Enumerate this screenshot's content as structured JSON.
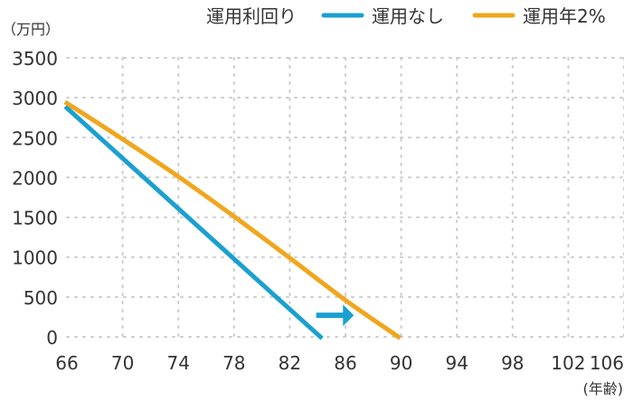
{
  "chart_data": {
    "type": "line",
    "y_unit_label": "（万円）",
    "x_unit_label": "(年齢)",
    "legend": {
      "title": "運用利回り",
      "position": "top-right"
    },
    "x_ticks": [
      "66",
      "70",
      "74",
      "78",
      "82",
      "86",
      "90",
      "94",
      "98",
      "102",
      "106"
    ],
    "y_ticks": [
      "0",
      "500",
      "1000",
      "1500",
      "2000",
      "2500",
      "3000",
      "3500"
    ],
    "xlim": [
      66,
      106
    ],
    "ylim": [
      0,
      3500
    ],
    "grid": "horizontal dotted",
    "series": [
      {
        "name": "運用なし",
        "color": "#1aa0d0",
        "x": [
          66,
          84.2
        ],
        "y": [
          2870,
          0
        ]
      },
      {
        "name": "運用年2%",
        "color": "#f0a61e",
        "x": [
          66,
          70,
          74,
          78,
          82,
          86,
          89.8
        ],
        "y": [
          2930,
          2480,
          2010,
          1510,
          990,
          460,
          0
        ]
      }
    ],
    "annotation": {
      "type": "arrow",
      "icon": "right-arrow-icon",
      "color": "#1aa0d0",
      "from": [
        83.9,
        270
      ],
      "to": [
        86.6,
        270
      ]
    }
  }
}
